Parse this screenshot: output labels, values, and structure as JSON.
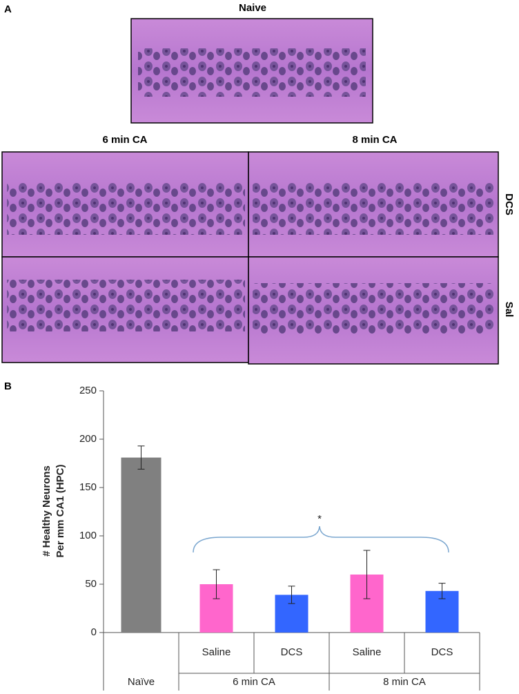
{
  "panel_a": {
    "label": "A",
    "naive": "Naive",
    "columns": [
      "6 min CA",
      "8 min CA"
    ],
    "rows": [
      "DCS",
      "Sal"
    ]
  },
  "chart_data": {
    "type": "bar",
    "panel_label": "B",
    "ylabel": [
      "# Healthy Neurons",
      "Per mm CA1 (HPC)"
    ],
    "groups": [
      {
        "name": "Naïve",
        "categories": [
          null
        ]
      },
      {
        "name": "6 min CA",
        "categories": [
          "Saline",
          "DCS"
        ]
      },
      {
        "name": "8 min CA",
        "categories": [
          "Saline",
          "DCS"
        ]
      }
    ],
    "values": [
      181,
      50,
      39,
      60,
      43
    ],
    "errors": [
      12,
      15,
      9,
      25,
      8
    ],
    "colors": [
      "#808080",
      "#ff66cc",
      "#3366ff",
      "#ff66cc",
      "#3366ff"
    ],
    "ylim": [
      0,
      250
    ],
    "yticks": [
      0,
      50,
      100,
      150,
      200,
      250
    ],
    "annotation": "*"
  }
}
